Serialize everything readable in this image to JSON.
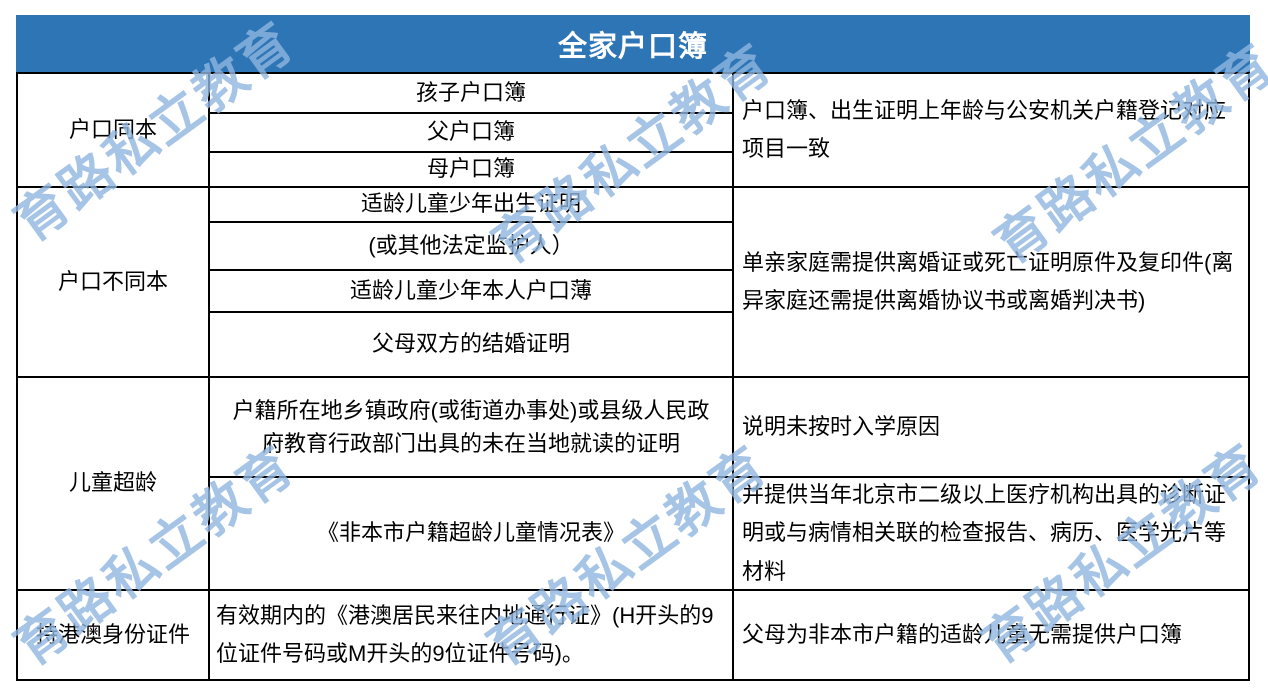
{
  "title": "全家户口簿",
  "watermark": {
    "text": "育路私立教育"
  },
  "theme": {
    "header_bg": "#2E75B6",
    "header_text_color": "#FFFFFF",
    "border_color": "#000000",
    "watermark_color": "#8FB6E0"
  },
  "table": {
    "groups": [
      {
        "category": "户口同本",
        "items": [
          "孩子户口簿",
          "父户口簿",
          "母户口簿"
        ],
        "note": "户口簿、出生证明上年龄与公安机关户籍登记对应项目一致"
      },
      {
        "category": "户口不同本",
        "items": [
          "适龄儿童少年出生证明",
          "(或其他法定监护人）",
          "适龄儿童少年本人户口薄",
          "父母双方的结婚证明"
        ],
        "note": "单亲家庭需提供离婚证或死亡证明原件及复印件(离异家庭还需提供离婚协议书或离婚判决书)"
      },
      {
        "category": "儿童超龄",
        "items": [
          "户籍所在地乡镇政府(或街道办事处)或县级人民政府教育行政部门出具的未在当地就读的证明",
          "《非本市户籍超龄儿童情况表》"
        ],
        "notes": [
          "说明未按时入学原因",
          "并提供当年北京市二级以上医疗机构出具的诊断证明或与病情相关联的检查报告、病历、医学光片等材料"
        ]
      },
      {
        "category": "持港澳身份证件",
        "items": [
          "有效期内的《港澳居民来往内地通行证》(H开头的9位证件号码或M开头的9位证件号码)。"
        ],
        "note": "父母为非本市户籍的适龄儿童无需提供户口簿"
      }
    ]
  }
}
